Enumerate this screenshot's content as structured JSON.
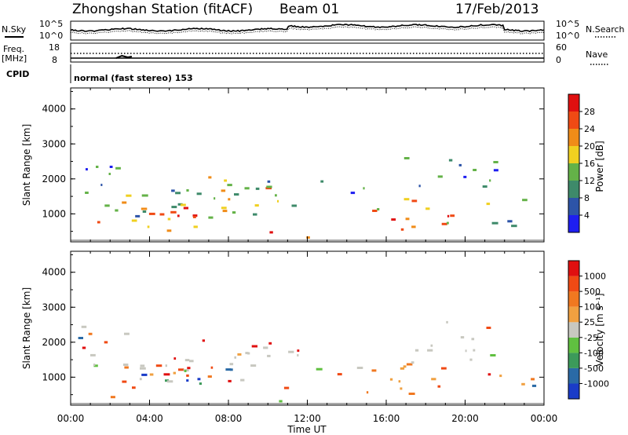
{
  "header": {
    "station": "Zhongshan Station (fitACF)",
    "beam": "Beam 01",
    "date": "17/Feb/2013"
  },
  "nsky_panel": {
    "left_label": "N.Sky",
    "right_label": "N.Search",
    "left_ticks": [
      "10^5",
      "10^0"
    ],
    "right_ticks": [
      "10^5",
      "10^0"
    ]
  },
  "freq_panel": {
    "left_label_1": "Freq.",
    "left_label_2": "[MHz]",
    "right_label": "Nave",
    "left_ticks": [
      "18",
      "8"
    ],
    "right_ticks": [
      "60",
      "0"
    ]
  },
  "cpid": {
    "label": "CPID",
    "text": "normal (fast stereo) 153"
  },
  "chart_data": [
    {
      "type": "heatmap",
      "name_key": "power",
      "ylabel": "Slant Range [km]",
      "xlabel": "",
      "yticks": [
        "1000",
        "2000",
        "3000",
        "4000"
      ],
      "ylim": [
        200,
        4600
      ],
      "xlim_hours": [
        0,
        24
      ],
      "colorbar": {
        "label": "Power [dB]",
        "ticks": [
          "4",
          "8",
          "12",
          "16",
          "20",
          "24",
          "28"
        ],
        "colors": [
          "#1e1ef0",
          "#2d54a8",
          "#3e8a6a",
          "#64b248",
          "#f0d020",
          "#f08c18",
          "#f04a14",
          "#e01010"
        ]
      }
    },
    {
      "type": "heatmap",
      "name_key": "velocity",
      "ylabel": "Slant Range [km]",
      "xlabel": "Time UT",
      "yticks": [
        "1000",
        "2000",
        "3000",
        "4000"
      ],
      "xticks": [
        "00:00",
        "04:00",
        "08:00",
        "12:00",
        "16:00",
        "20:00",
        "00:00"
      ],
      "ylim": [
        200,
        4600
      ],
      "xlim_hours": [
        0,
        24
      ],
      "colorbar": {
        "label": "Velocity [m s⁻¹]",
        "ticks": [
          "1000",
          "500",
          "100",
          "25",
          "-25",
          "-100",
          "-500",
          "-1000"
        ],
        "colors": [
          "#1a3cc8",
          "#2a6aa6",
          "#3c9a5a",
          "#60c040",
          "#c8c8c0",
          "#f0a040",
          "#f07820",
          "#f04a14",
          "#e01010"
        ]
      }
    }
  ]
}
